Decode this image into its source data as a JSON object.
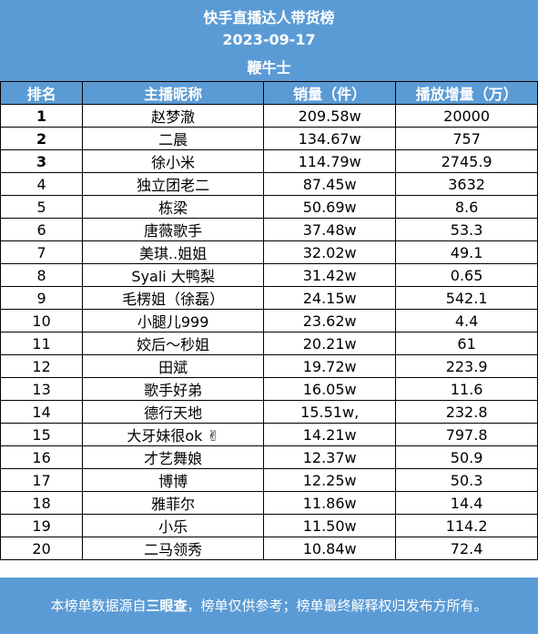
{
  "header": {
    "title": "快手直播达人带货榜",
    "date": "2023-09-17",
    "subtitle": "鞭牛士"
  },
  "columns": [
    "排名",
    "主播昵称",
    "销量（件）",
    "播放增量（万）"
  ],
  "rows": [
    {
      "rank": "1",
      "name": "赵梦澈",
      "sales": "209.58w",
      "plays": "20000"
    },
    {
      "rank": "2",
      "name": "二晨",
      "sales": "134.67w",
      "plays": "757"
    },
    {
      "rank": "3",
      "name": "徐小米",
      "sales": "114.79w",
      "plays": "2745.9"
    },
    {
      "rank": "4",
      "name": "独立团老二",
      "sales": "87.45w",
      "plays": "3632"
    },
    {
      "rank": "5",
      "name": "栋梁",
      "sales": "50.69w",
      "plays": "8.6"
    },
    {
      "rank": "6",
      "name": "唐薇歌手",
      "sales": "37.48w",
      "plays": "53.3"
    },
    {
      "rank": "7",
      "name": "美琪..姐姐",
      "sales": "32.02w",
      "plays": "49.1"
    },
    {
      "rank": "8",
      "name": "Syali 大鸭梨",
      "sales": "31.42w",
      "plays": "0.65"
    },
    {
      "rank": "9",
      "name": "毛楞姐（徐磊）",
      "sales": "24.15w",
      "plays": "542.1"
    },
    {
      "rank": "10",
      "name": "小腿儿999",
      "sales": "23.62w",
      "plays": "4.4"
    },
    {
      "rank": "11",
      "name": "姣后～秒姐",
      "sales": "20.21w",
      "plays": "61"
    },
    {
      "rank": "12",
      "name": "田斌",
      "sales": "19.72w",
      "plays": "223.9"
    },
    {
      "rank": "13",
      "name": "歌手好弟",
      "sales": "16.05w",
      "plays": "11.6"
    },
    {
      "rank": "14",
      "name": "德行天地",
      "sales": "15.51w,",
      "plays": "232.8"
    },
    {
      "rank": "15",
      "name": "大牙妹很ok ✌",
      "sales": "14.21w",
      "plays": "797.8"
    },
    {
      "rank": "16",
      "name": "才艺舞娘",
      "sales": "12.37w",
      "plays": "50.9"
    },
    {
      "rank": "17",
      "name": "博博",
      "sales": "12.25w",
      "plays": "50.3"
    },
    {
      "rank": "18",
      "name": "雅菲尔",
      "sales": "11.86w",
      "plays": "14.4"
    },
    {
      "rank": "19",
      "name": "小乐",
      "sales": "11.50w",
      "plays": "114.2"
    },
    {
      "rank": "20",
      "name": "二马领秀",
      "sales": "10.84w",
      "plays": "72.4"
    }
  ],
  "footer": {
    "prefix": "本榜单数据源自",
    "source": "三眼查",
    "suffix": "，榜单仅供参考；榜单最终解释权归发布方所有。"
  }
}
